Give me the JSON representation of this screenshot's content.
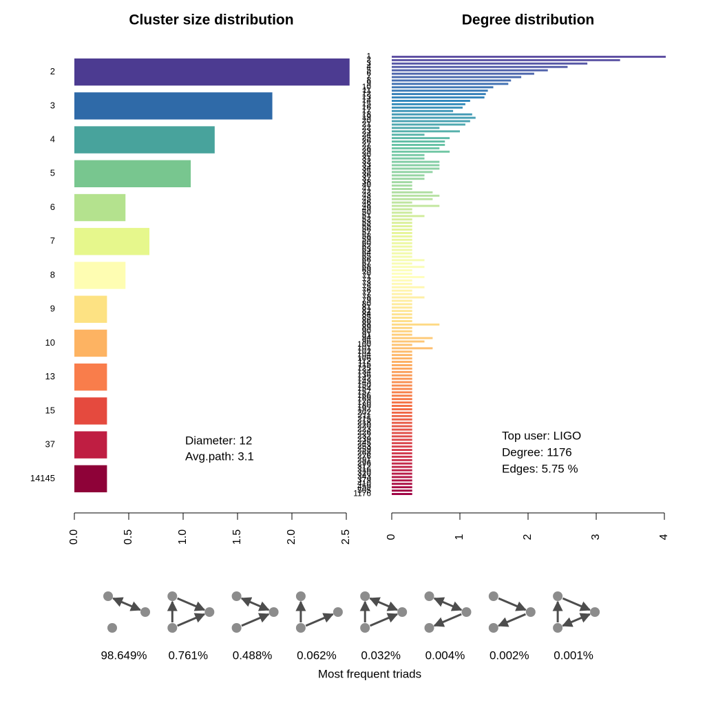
{
  "chart_data": [
    {
      "type": "bar",
      "orientation": "horizontal",
      "title": "Cluster size distribution",
      "categories": [
        "2",
        "3",
        "4",
        "5",
        "6",
        "7",
        "8",
        "9",
        "10",
        "13",
        "15",
        "37",
        "14145"
      ],
      "values": [
        2.53,
        1.82,
        1.29,
        1.07,
        0.47,
        0.69,
        0.47,
        0.3,
        0.3,
        0.3,
        0.3,
        0.3,
        0.3
      ],
      "colors": [
        "#4c3b91",
        "#2f6aa8",
        "#48a39c",
        "#78c68f",
        "#b4e28e",
        "#e6f78c",
        "#fefdb2",
        "#fde283",
        "#fdb362",
        "#f97d4b",
        "#e54a3e",
        "#bf1e42",
        "#8e0238"
      ],
      "xlim": [
        0,
        2.5
      ],
      "xticks": [
        {
          "value": 0,
          "label": "0.0"
        },
        {
          "value": 0.5,
          "label": "0.5"
        },
        {
          "value": 1,
          "label": "1.0"
        },
        {
          "value": 1.5,
          "label": "1.5"
        },
        {
          "value": 2,
          "label": "2.0"
        },
        {
          "value": 2.5,
          "label": "2.5"
        }
      ],
      "annotations": [
        "Diameter: 12",
        "Avg.path: 3.1"
      ]
    },
    {
      "type": "bar",
      "orientation": "horizontal",
      "title": "Degree distribution",
      "categories": [
        "1",
        "2",
        "3",
        "4",
        "5",
        "6",
        "7",
        "8",
        "9",
        "10",
        "11",
        "12",
        "13",
        "14",
        "15",
        "16",
        "17",
        "18",
        "19",
        "20",
        "21",
        "22",
        "23",
        "24",
        "25",
        "26",
        "27",
        "28",
        "29",
        "30",
        "31",
        "32",
        "33",
        "34",
        "35",
        "36",
        "37",
        "38",
        "40",
        "41",
        "42",
        "43",
        "45",
        "46",
        "48",
        "49",
        "50",
        "51",
        "52",
        "53",
        "55",
        "56",
        "57",
        "58",
        "59",
        "60",
        "62",
        "63",
        "64",
        "65",
        "66",
        "67",
        "68",
        "69",
        "70",
        "71",
        "72",
        "73",
        "75",
        "76",
        "77",
        "78",
        "79",
        "80",
        "81",
        "82",
        "84",
        "85",
        "86",
        "88",
        "89",
        "90",
        "91",
        "94",
        "96",
        "100",
        "101",
        "102",
        "104",
        "106",
        "112",
        "115",
        "125",
        "134",
        "136",
        "142",
        "143",
        "150",
        "154",
        "157",
        "166",
        "169",
        "170",
        "180",
        "192",
        "202",
        "211",
        "215",
        "218",
        "220",
        "223",
        "226",
        "232",
        "239",
        "245",
        "253",
        "259",
        "268",
        "276",
        "291",
        "296",
        "312",
        "316",
        "320",
        "343",
        "379",
        "410",
        "459",
        "505",
        "1176"
      ],
      "values": [
        4.02,
        3.35,
        2.87,
        2.58,
        2.29,
        2.09,
        1.9,
        1.75,
        1.71,
        1.49,
        1.41,
        1.38,
        1.36,
        1.15,
        1.08,
        1.04,
        0.9,
        1.18,
        1.23,
        1.15,
        1.08,
        0.7,
        1.0,
        0.48,
        0.85,
        0.78,
        0.78,
        0.7,
        0.85,
        0.48,
        0.48,
        0.7,
        0.7,
        0.7,
        0.6,
        0.48,
        0.48,
        0.3,
        0.3,
        0.3,
        0.6,
        0.7,
        0.6,
        0.3,
        0.7,
        0.3,
        0.3,
        0.48,
        0.3,
        0.3,
        0.3,
        0.3,
        0.3,
        0.3,
        0.3,
        0.3,
        0.3,
        0.3,
        0.3,
        0.3,
        0.48,
        0.3,
        0.48,
        0.3,
        0.3,
        0.48,
        0.3,
        0.3,
        0.48,
        0.3,
        0.3,
        0.48,
        0.3,
        0.3,
        0.3,
        0.3,
        0.3,
        0.3,
        0.3,
        0.7,
        0.3,
        0.3,
        0.3,
        0.6,
        0.48,
        0.3,
        0.6,
        0.3,
        0.3,
        0.3,
        0.3,
        0.3,
        0.3,
        0.3,
        0.3,
        0.3,
        0.3,
        0.3,
        0.3,
        0.3,
        0.3,
        0.3,
        0.3,
        0.3,
        0.3,
        0.3,
        0.3,
        0.3,
        0.3,
        0.3,
        0.3,
        0.3,
        0.3,
        0.3,
        0.3,
        0.3,
        0.3,
        0.3,
        0.3,
        0.3,
        0.3,
        0.3,
        0.3,
        0.3,
        0.3,
        0.3,
        0.3,
        0.3,
        0.3,
        0.3
      ],
      "palette": [
        "#5e4fa2",
        "#3288bd",
        "#66c2a5",
        "#abdda4",
        "#e6f598",
        "#ffffbf",
        "#fee08b",
        "#fdae61",
        "#f46d43",
        "#d53e4f",
        "#9e0142"
      ],
      "xlim": [
        0,
        4
      ],
      "xticks": [
        0,
        1,
        2,
        3,
        4
      ],
      "annotations": [
        "Top user: LIGO",
        "Degree: 1176",
        "Edges: 5.75 %"
      ]
    }
  ],
  "triads": {
    "values": [
      98.649,
      0.761,
      0.488,
      0.062,
      0.032,
      0.004,
      0.002,
      0.001
    ],
    "value_labels": [
      "98.649%",
      "0.761%",
      "0.488%",
      "0.062%",
      "0.032%",
      "0.004%",
      "0.002%",
      "0.001%"
    ],
    "caption": "Most frequent triads"
  }
}
